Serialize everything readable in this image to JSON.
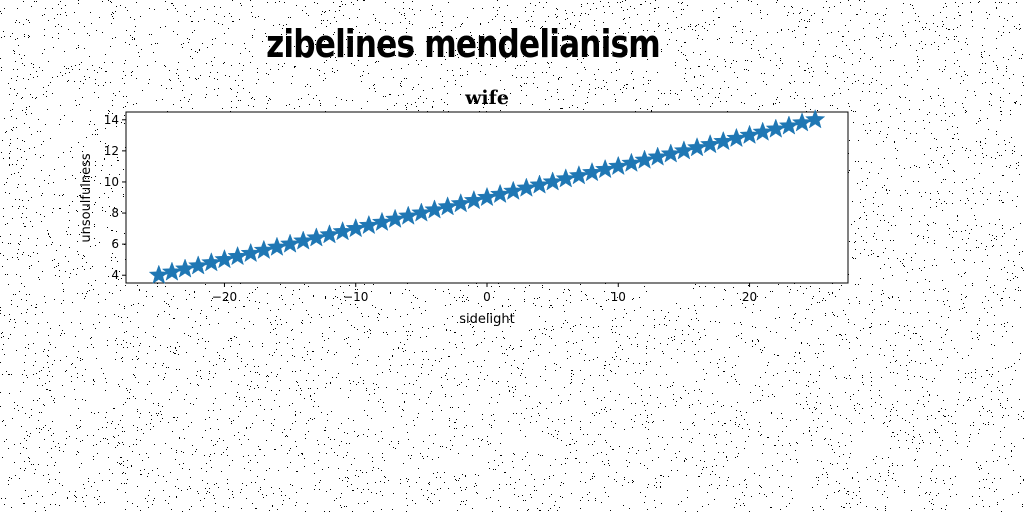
{
  "headline": "zibelines mendelianism",
  "chart_data": {
    "type": "line",
    "title": "wife",
    "xlabel": "sidelight",
    "ylabel": "unsoulfulness",
    "xlim": [
      -27.5,
      27.5
    ],
    "ylim": [
      3.5,
      14.5
    ],
    "xticks": [
      -20,
      -10,
      0,
      10,
      20
    ],
    "xtick_labels": [
      "−20",
      "−10",
      "0",
      "10",
      "20"
    ],
    "yticks": [
      4,
      6,
      8,
      10,
      12,
      14
    ],
    "ytick_labels": [
      "4",
      "6",
      "8",
      "10",
      "12",
      "14"
    ],
    "grid": false,
    "marker": "star",
    "color": "#1f77b4",
    "series": [
      {
        "x_start": -25,
        "x_end": 25,
        "n_points": 51,
        "y_start": 4,
        "y_end": 14
      }
    ]
  }
}
